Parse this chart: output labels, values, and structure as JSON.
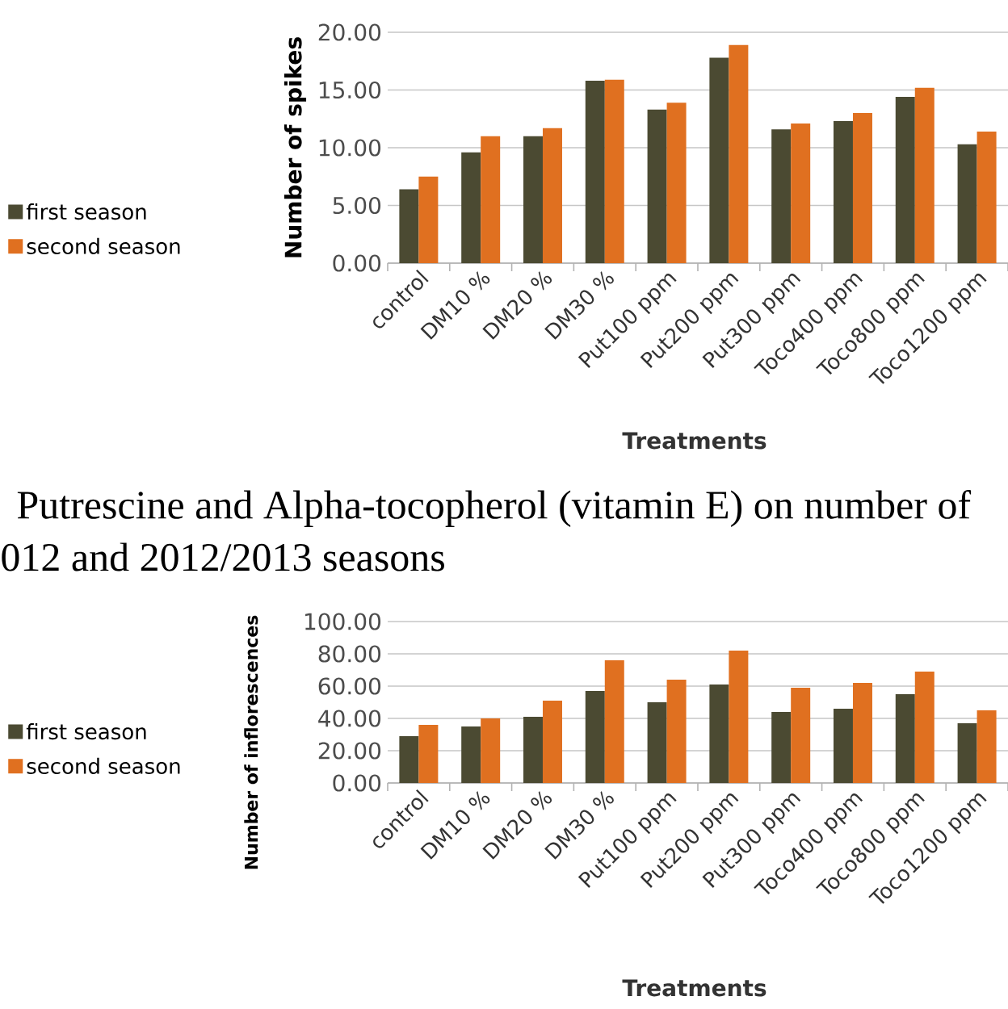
{
  "chart_data": [
    {
      "type": "bar",
      "ylabel": "Number of spikes",
      "xlabel": "Treatments",
      "categories": [
        "control",
        "DM10 %",
        "DM20 %",
        "DM30 %",
        "Put100 ppm",
        "Put200  ppm",
        "Put300 ppm",
        "Toco400 ppm",
        "Toco800 ppm",
        "Toco1200 ppm"
      ],
      "series": [
        {
          "name": "first season",
          "color": "#4b4a32",
          "values": [
            6.4,
            9.6,
            11.0,
            15.8,
            13.3,
            17.8,
            11.6,
            12.3,
            14.4,
            10.3
          ]
        },
        {
          "name": "second season",
          "color": "#e07020",
          "values": [
            7.5,
            11.0,
            11.7,
            15.9,
            13.9,
            18.9,
            12.1,
            13.0,
            15.2,
            11.4
          ]
        }
      ],
      "ylim": [
        0,
        20
      ],
      "yticks": [
        {
          "value": 0,
          "label": "0.00"
        },
        {
          "value": 5,
          "label": "5.00"
        },
        {
          "value": 10,
          "label": "10.00"
        },
        {
          "value": 15,
          "label": "15.00"
        },
        {
          "value": 20,
          "label": "20.00"
        }
      ],
      "grid": "y",
      "legend": "left",
      "annotations": [
        "Putrescine and Alpha-tocopherol (vitamin E) on number of",
        "012 and 2012/2013 seasons"
      ]
    },
    {
      "type": "bar",
      "ylabel": "Number of inflorescences",
      "xlabel": "Treatments",
      "categories": [
        "control",
        "DM10 %",
        "DM20 %",
        "DM30 %",
        "Put100 ppm",
        "Put200  ppm",
        "Put300 ppm",
        "Toco400 ppm",
        "Toco800 ppm",
        "Toco1200 ppm"
      ],
      "series": [
        {
          "name": "first season",
          "color": "#4b4a32",
          "values": [
            29,
            35,
            41,
            57,
            50,
            61,
            44,
            46,
            55,
            37
          ]
        },
        {
          "name": "second season",
          "color": "#e07020",
          "values": [
            36,
            40,
            51,
            76,
            64,
            82,
            59,
            62,
            69,
            45
          ]
        }
      ],
      "ylim": [
        0,
        100
      ],
      "yticks": [
        {
          "value": 0,
          "label": "0.00"
        },
        {
          "value": 20,
          "label": "20.00"
        },
        {
          "value": 40,
          "label": "40.00"
        },
        {
          "value": 60,
          "label": "60.00"
        },
        {
          "value": 80,
          "label": "80.00"
        },
        {
          "value": 100,
          "label": "100.00"
        }
      ],
      "grid": "y",
      "legend": "left"
    }
  ]
}
